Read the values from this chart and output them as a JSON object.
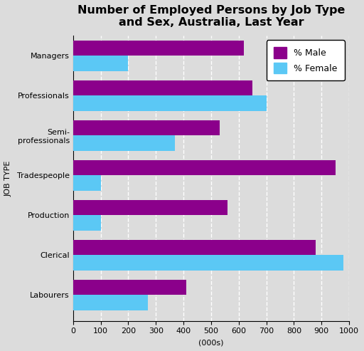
{
  "title": "Number of Employed Persons by Job Type\nand Sex, Australia, Last Year",
  "categories": [
    "Labourers",
    "Clerical",
    "Production",
    "Tradespeople",
    "Semi-\nprofessionals",
    "Professionals",
    "Managers"
  ],
  "male_values": [
    410,
    880,
    560,
    950,
    530,
    650,
    620
  ],
  "female_values": [
    270,
    980,
    100,
    100,
    370,
    700,
    200
  ],
  "male_color": "#8B008B",
  "female_color": "#5BC8F5",
  "xlabel": "(000s)",
  "ylabel": "JOB TYPE",
  "xlim": [
    0,
    1000
  ],
  "xticks": [
    0,
    100,
    200,
    300,
    400,
    500,
    600,
    700,
    800,
    900,
    1000
  ],
  "bar_height": 0.38,
  "background_color": "#DCDCDC",
  "grid_color": "#FFFFFF",
  "legend_labels": [
    "% Male",
    "% Female"
  ],
  "title_fontsize": 11.5,
  "axis_label_fontsize": 8,
  "tick_fontsize": 8
}
